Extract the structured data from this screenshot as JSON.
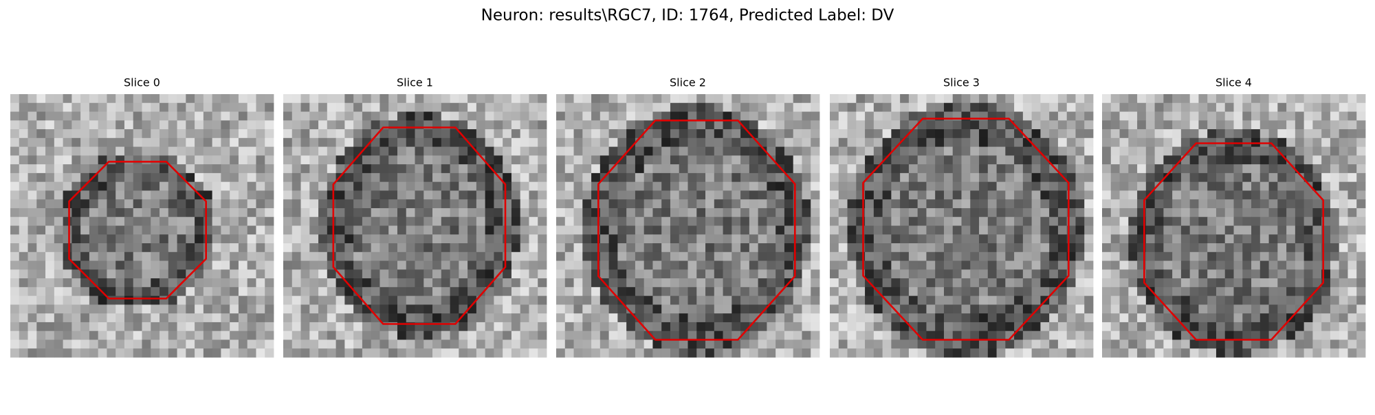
{
  "title": "Neuron: results\\RGC7, ID: 1764, Predicted Label: DV",
  "panels": [
    {
      "title": "Slice 0"
    },
    {
      "title": "Slice 1"
    },
    {
      "title": "Slice 2"
    },
    {
      "title": "Slice 3"
    },
    {
      "title": "Slice 4"
    }
  ]
}
